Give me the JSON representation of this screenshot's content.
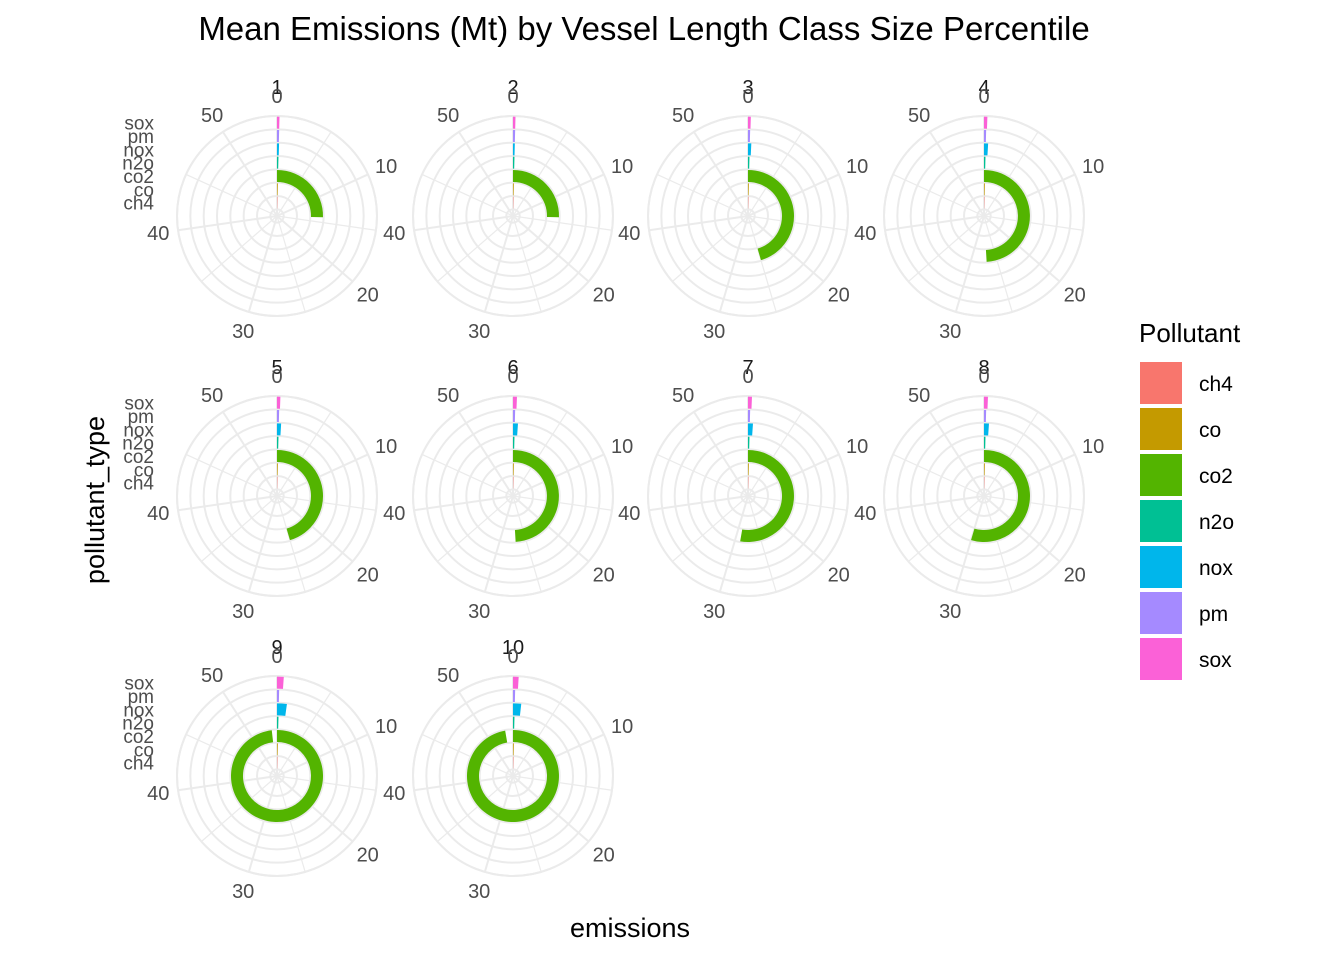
{
  "chart_data": {
    "type": "bar",
    "coord": "polar",
    "title": "Mean Emissions (Mt) by Vessel Length Class Size Percentile",
    "xlabel": "emissions",
    "ylabel": "pollutant_type",
    "facet_labels": [
      "1",
      "2",
      "3",
      "4",
      "5",
      "6",
      "7",
      "8",
      "9",
      "10"
    ],
    "theta_ticks": [
      "0",
      "10",
      "20",
      "30",
      "40",
      "50"
    ],
    "theta_max": 55,
    "categories": [
      "ch4",
      "co",
      "co2",
      "n2o",
      "nox",
      "pm",
      "sox"
    ],
    "legend": {
      "title": "Pollutant",
      "position": "right",
      "entries": [
        "ch4",
        "co",
        "co2",
        "n2o",
        "nox",
        "pm",
        "sox"
      ]
    },
    "colors": {
      "ch4": "#F8766D",
      "co": "#C49A00",
      "co2": "#53B400",
      "n2o": "#00C094",
      "nox": "#00B6EB",
      "pm": "#A58AFF",
      "sox": "#FB61D7"
    },
    "series": [
      {
        "panel": "1",
        "values": {
          "ch4": 0.0005,
          "co": 0.01,
          "co2": 14.0,
          "n2o": 0.001,
          "nox": 0.25,
          "pm": 0.03,
          "sox": 0.2
        }
      },
      {
        "panel": "2",
        "values": {
          "ch4": 0.0005,
          "co": 0.01,
          "co2": 14.0,
          "n2o": 0.001,
          "nox": 0.2,
          "pm": 0.02,
          "sox": 0.15
        }
      },
      {
        "panel": "3",
        "values": {
          "ch4": 0.0007,
          "co": 0.02,
          "co2": 25.0,
          "n2o": 0.001,
          "nox": 0.4,
          "pm": 0.04,
          "sox": 0.25
        }
      },
      {
        "panel": "4",
        "values": {
          "ch4": 0.0007,
          "co": 0.02,
          "co2": 27.0,
          "n2o": 0.001,
          "nox": 0.5,
          "pm": 0.05,
          "sox": 0.3
        }
      },
      {
        "panel": "5",
        "values": {
          "ch4": 0.0007,
          "co": 0.02,
          "co2": 25.0,
          "n2o": 0.001,
          "nox": 0.5,
          "pm": 0.05,
          "sox": 0.3
        }
      },
      {
        "panel": "6",
        "values": {
          "ch4": 0.0007,
          "co": 0.02,
          "co2": 27.0,
          "n2o": 0.001,
          "nox": 0.6,
          "pm": 0.05,
          "sox": 0.35
        }
      },
      {
        "panel": "7",
        "values": {
          "ch4": 0.0008,
          "co": 0.02,
          "co2": 29.0,
          "n2o": 0.001,
          "nox": 0.6,
          "pm": 0.05,
          "sox": 0.35
        }
      },
      {
        "panel": "8",
        "values": {
          "ch4": 0.0008,
          "co": 0.02,
          "co2": 30.0,
          "n2o": 0.001,
          "nox": 0.6,
          "pm": 0.05,
          "sox": 0.35
        }
      },
      {
        "panel": "9",
        "values": {
          "ch4": 0.001,
          "co": 0.04,
          "co2": 54.0,
          "n2o": 0.001,
          "nox": 1.2,
          "pm": 0.1,
          "sox": 0.6
        }
      },
      {
        "panel": "10",
        "values": {
          "ch4": 0.001,
          "co": 0.04,
          "co2": 53.5,
          "n2o": 0.001,
          "nox": 1.0,
          "pm": 0.1,
          "sox": 0.5
        }
      }
    ]
  }
}
